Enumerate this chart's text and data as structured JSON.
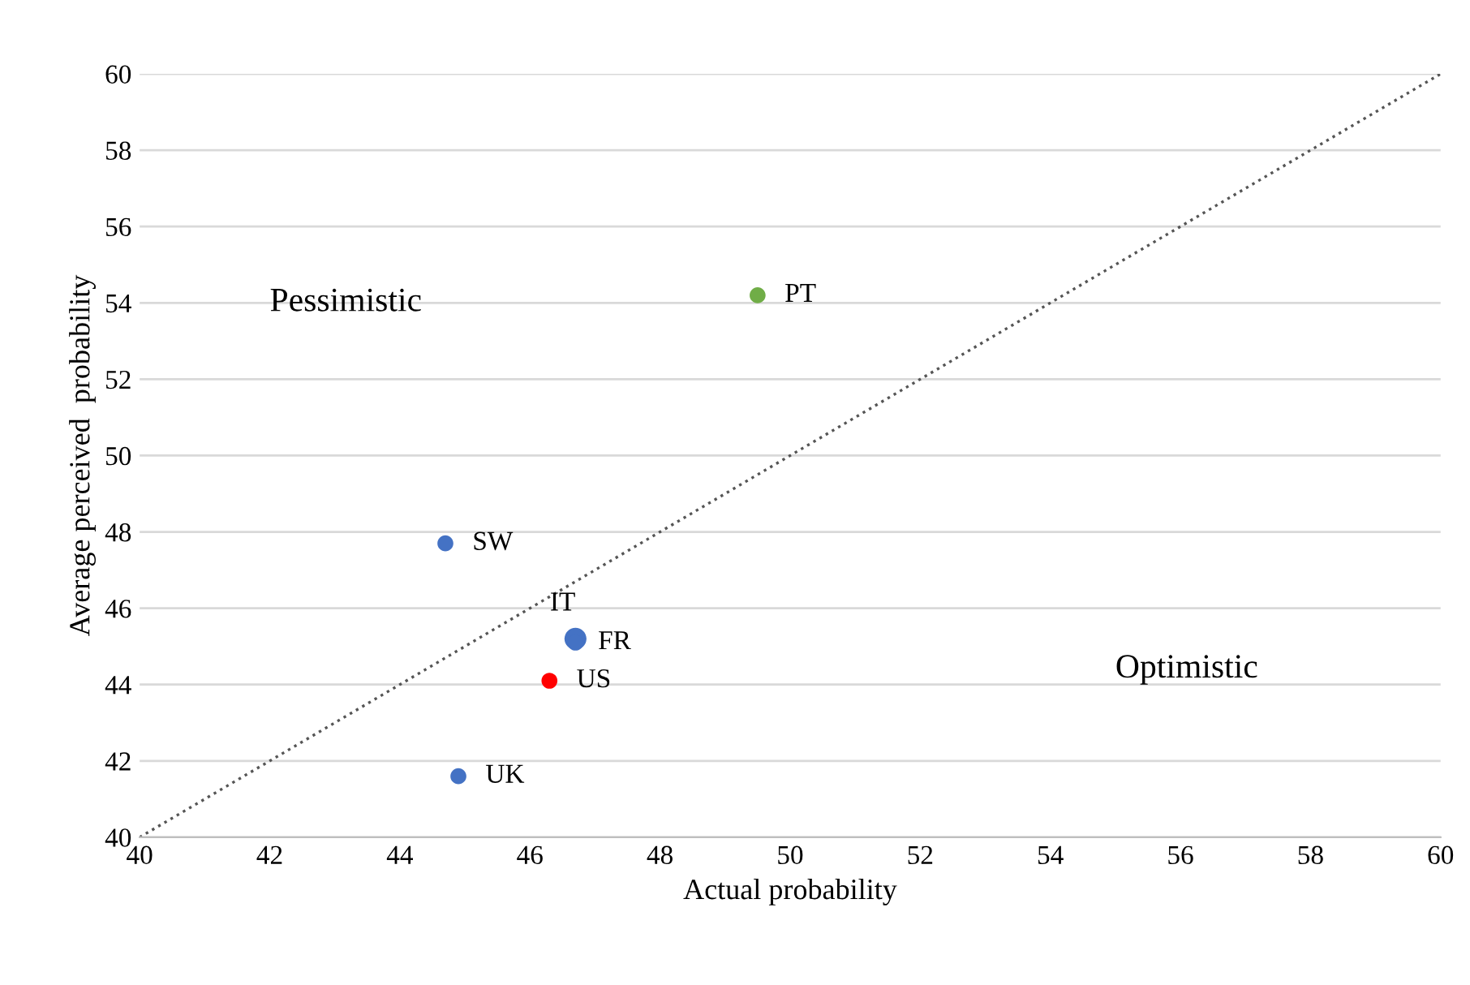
{
  "chart_data": {
    "type": "scatter",
    "xlabel": "Actual probability",
    "ylabel": "Average perceived  probability",
    "xlim": [
      40,
      60
    ],
    "xticks": [
      40,
      42,
      44,
      46,
      48,
      50,
      52,
      54,
      56,
      58,
      60
    ],
    "ylim": [
      40,
      60
    ],
    "yticks": [
      40,
      42,
      44,
      46,
      48,
      50,
      52,
      54,
      56,
      58,
      60
    ],
    "grid": "y",
    "annotations": [
      "Pessimistic",
      "Optimistic"
    ],
    "series": [
      {
        "name": "PT",
        "marker": "circle",
        "color": "#70ad47",
        "x": [
          49.5
        ],
        "values": [
          54.2
        ]
      },
      {
        "name": "SW",
        "marker": "circle",
        "color": "#4472c4",
        "x": [
          44.7
        ],
        "values": [
          47.7
        ]
      },
      {
        "name": "IT",
        "marker": "circle",
        "color": "#4472c4",
        "x": [
          46.7
        ],
        "values": [
          45.2
        ]
      },
      {
        "name": "FR",
        "marker": "circle",
        "color": "#4472c4",
        "x": [
          46.7
        ],
        "values": [
          45.1
        ]
      },
      {
        "name": "US",
        "marker": "circle",
        "color": "#ff0000",
        "x": [
          46.3
        ],
        "values": [
          44.1
        ]
      },
      {
        "name": "UK",
        "marker": "circle",
        "color": "#4472c4",
        "x": [
          44.9
        ],
        "values": [
          41.6
        ]
      },
      {
        "type": "line",
        "color": "#555555",
        "line_style": "dotted",
        "x": [
          40,
          60
        ],
        "values": [
          40,
          60
        ]
      }
    ]
  }
}
